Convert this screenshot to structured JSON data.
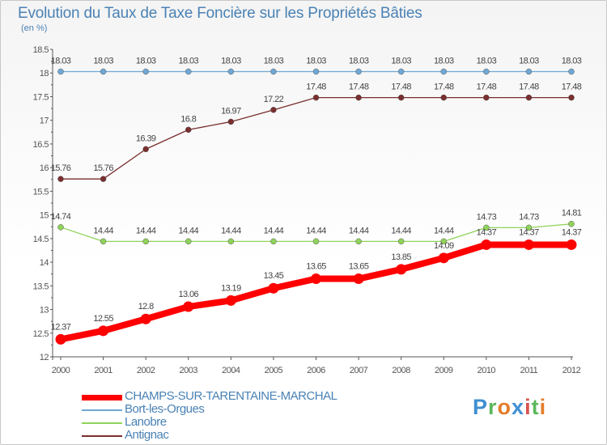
{
  "title": "Evolution du Taux de Taxe Foncière sur les Propriétés Bâties",
  "unit_label": "(en %)",
  "logo": {
    "text": "Proxiti",
    "colors": [
      "#3f8fd2",
      "#5cb85c",
      "#e57c2b",
      "#3f8fd2",
      "#d9534f",
      "#5cb85c",
      "#e57c2b"
    ]
  },
  "chart_data": {
    "type": "line",
    "title": "Evolution du Taux de Taxe Foncière sur les Propriétés Bâties",
    "ylabel": "(en %)",
    "xlabel": "",
    "ylim": [
      12,
      18.5
    ],
    "yticks": [
      "12",
      "12.5",
      "13",
      "13.5",
      "14",
      "14.5",
      "15",
      "15.5",
      "16",
      "16.5",
      "17",
      "17.5",
      "18",
      "18.5"
    ],
    "x": [
      "2000",
      "2001",
      "2002",
      "2003",
      "2004",
      "2005",
      "2006",
      "2007",
      "2008",
      "2009",
      "2010",
      "2011",
      "2012"
    ],
    "series": [
      {
        "name": "Bort-les-Orgues",
        "color": "#6fa8d6",
        "values": [
          18.03,
          18.03,
          18.03,
          18.03,
          18.03,
          18.03,
          18.03,
          18.03,
          18.03,
          18.03,
          18.03,
          18.03,
          18.03
        ],
        "labels": [
          "18.03",
          "18.03",
          "18.03",
          "18.03",
          "18.03",
          "18.03",
          "18.03",
          "18.03",
          "18.03",
          "18.03",
          "18.03",
          "18.03",
          "18.03"
        ]
      },
      {
        "name": "Antignac",
        "color": "#7a2e2e",
        "values": [
          15.76,
          15.76,
          16.39,
          16.8,
          16.97,
          17.22,
          17.48,
          17.48,
          17.48,
          17.48,
          17.48,
          17.48,
          17.48
        ],
        "labels": [
          "15.76",
          "15.76",
          "16.39",
          "16.8",
          "16.97",
          "17.22",
          "17.48",
          "17.48",
          "17.48",
          "17.48",
          "17.48",
          "17.48",
          "17.48"
        ]
      },
      {
        "name": "Lanobre",
        "color": "#8fd35a",
        "values": [
          14.74,
          14.44,
          14.44,
          14.44,
          14.44,
          14.44,
          14.44,
          14.44,
          14.44,
          14.44,
          14.73,
          14.73,
          14.81
        ],
        "labels": [
          "14.74",
          "14.44",
          "14.44",
          "14.44",
          "14.44",
          "14.44",
          "14.44",
          "14.44",
          "14.44",
          "14.44",
          "14.73",
          "14.73",
          "14.81"
        ]
      },
      {
        "name": "CHAMPS-SUR-TARENTAINE-MARCHAL",
        "color": "#ff0000",
        "values": [
          12.37,
          12.55,
          12.8,
          13.06,
          13.19,
          13.45,
          13.65,
          13.65,
          13.85,
          14.09,
          14.37,
          14.37,
          14.37
        ],
        "labels": [
          "12.37",
          "12.55",
          "12.8",
          "13.06",
          "13.19",
          "13.45",
          "13.65",
          "13.65",
          "13.85",
          "14.09",
          "14.37",
          "14.37",
          "14.37"
        ]
      }
    ],
    "legend": [
      "CHAMPS-SUR-TARENTAINE-MARCHAL",
      "Bort-les-Orgues",
      "Lanobre",
      "Antignac"
    ],
    "legend_position": "bottom-left",
    "grid": false
  }
}
